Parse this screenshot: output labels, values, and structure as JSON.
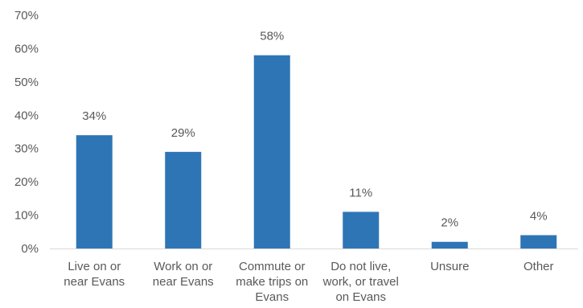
{
  "chart_data": {
    "type": "bar",
    "title": "",
    "xlabel": "",
    "ylabel": "",
    "ylim": [
      0,
      70
    ],
    "ytick_step": 10,
    "ytick_labels": [
      "0%",
      "10%",
      "20%",
      "30%",
      "40%",
      "50%",
      "60%",
      "70%"
    ],
    "grid": false,
    "legend": "none",
    "bar_color": "#2E75B6",
    "categories": [
      [
        "Live on or",
        "near Evans"
      ],
      [
        "Work on or",
        "near Evans"
      ],
      [
        "Commute or",
        "make trips on",
        "Evans"
      ],
      [
        "Do not live,",
        "work, or travel",
        "on Evans"
      ],
      [
        "Unsure"
      ],
      [
        "Other"
      ]
    ],
    "values": [
      34,
      29,
      58,
      11,
      2,
      4
    ],
    "data_labels": [
      "34%",
      "29%",
      "58%",
      "11%",
      "2%",
      "4%"
    ]
  }
}
